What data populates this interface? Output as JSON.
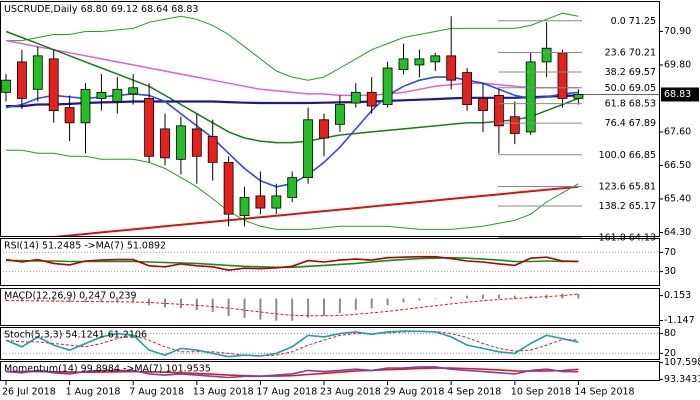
{
  "chart_data": [
    {
      "type": "candlestick",
      "title": "USCRUDE,Daily",
      "header_values": [
        "68.80",
        "69.12",
        "68.64",
        "68.83"
      ],
      "categories": [
        "26 Jul 2018",
        null,
        null,
        null,
        "1 Aug 2018",
        null,
        null,
        null,
        "7 Aug 2018",
        null,
        null,
        null,
        "13 Aug 2018",
        null,
        null,
        null,
        "17 Aug 2018",
        null,
        null,
        null,
        "23 Aug 2018",
        null,
        null,
        null,
        "29 Aug 2018",
        null,
        null,
        null,
        "4 Sep 2018",
        null,
        null,
        null,
        "10 Sep 2018",
        null,
        null,
        null,
        "14 Sep 2018"
      ],
      "open": [
        68.9,
        69.9,
        69.0,
        70.0,
        68.4,
        67.9,
        68.7,
        68.6,
        68.85,
        68.7,
        67.7,
        66.7,
        67.7,
        67.45,
        66.6,
        64.85,
        65.5,
        65.1,
        65.45,
        66.1,
        68.0,
        67.85,
        68.55,
        68.9,
        68.5,
        69.65,
        69.8,
        69.9,
        70.1,
        69.55,
        68.7,
        68.8,
        68.1,
        67.6,
        69.9,
        70.2,
        68.7
      ],
      "high": [
        69.5,
        70.3,
        70.4,
        70.3,
        68.8,
        69.2,
        69.5,
        69.4,
        69.5,
        69.2,
        68.2,
        68.1,
        68.2,
        68.0,
        66.8,
        65.8,
        66.3,
        65.9,
        66.3,
        68.4,
        68.2,
        68.8,
        69.2,
        69.4,
        69.9,
        70.5,
        70.3,
        70.2,
        71.4,
        69.7,
        69.2,
        69.0,
        68.6,
        70.2,
        71.2,
        70.3,
        69.0
      ],
      "low": [
        68.6,
        68.35,
        68.6,
        67.9,
        67.3,
        66.9,
        68.3,
        68.2,
        68.5,
        66.6,
        66.5,
        66.2,
        65.9,
        66.0,
        64.5,
        64.5,
        64.9,
        64.9,
        65.3,
        65.9,
        66.8,
        67.6,
        68.4,
        68.2,
        68.4,
        69.5,
        69.4,
        69.6,
        69.0,
        68.3,
        67.6,
        66.9,
        67.2,
        67.5,
        69.4,
        68.4,
        68.5
      ],
      "close": [
        69.3,
        68.7,
        70.1,
        68.3,
        67.9,
        69.0,
        68.9,
        69.0,
        69.05,
        66.8,
        66.75,
        67.8,
        66.8,
        66.6,
        64.9,
        65.45,
        65.1,
        65.5,
        66.1,
        68.0,
        67.4,
        68.5,
        68.9,
        68.45,
        69.7,
        70.0,
        70.0,
        70.1,
        69.3,
        68.5,
        68.3,
        67.8,
        67.55,
        69.9,
        70.35,
        68.7,
        68.83
      ],
      "up_color": "#22c022",
      "down_color": "#e8201b",
      "overlays": [
        {
          "color": "#d21414",
          "width": 2,
          "values": [
            64.0,
            64.05,
            64.1,
            64.15,
            64.2,
            64.25,
            64.3,
            64.35,
            64.4,
            64.45,
            64.5,
            64.55,
            64.6,
            64.65,
            64.7,
            64.75,
            64.8,
            64.85,
            64.9,
            64.95,
            65.0,
            65.05,
            65.1,
            65.15,
            65.2,
            65.25,
            65.3,
            65.35,
            65.4,
            65.45,
            65.5,
            65.55,
            65.6,
            65.65,
            65.7,
            65.75,
            65.8
          ]
        },
        {
          "color": "#2a9a2a",
          "width": 1,
          "values": [
            70.6,
            70.6,
            70.7,
            70.8,
            70.8,
            70.9,
            70.9,
            70.95,
            71.0,
            71.2,
            71.3,
            71.4,
            71.3,
            71.1,
            70.8,
            70.4,
            70.0,
            69.6,
            69.4,
            69.3,
            69.4,
            69.7,
            70.0,
            70.3,
            70.5,
            70.7,
            70.8,
            70.9,
            71.0,
            71.0,
            71.0,
            71.0,
            71.0,
            71.1,
            71.3,
            71.5,
            71.4
          ]
        },
        {
          "color": "#2a9a2a",
          "width": 1,
          "values": [
            67.0,
            67.0,
            66.9,
            66.9,
            66.8,
            66.8,
            66.7,
            66.7,
            66.7,
            66.6,
            66.4,
            66.1,
            65.8,
            65.4,
            65.0,
            64.7,
            64.5,
            64.4,
            64.4,
            64.4,
            64.45,
            64.5,
            64.5,
            64.5,
            64.5,
            64.45,
            64.4,
            64.4,
            64.4,
            64.45,
            64.5,
            64.6,
            64.7,
            64.9,
            65.3,
            65.6,
            65.9
          ]
        },
        {
          "color": "#e060d0",
          "width": 1.5,
          "values": [
            70.6,
            70.5,
            70.4,
            70.3,
            70.2,
            70.1,
            70.0,
            69.9,
            69.8,
            69.7,
            69.6,
            69.5,
            69.4,
            69.3,
            69.2,
            69.1,
            69.0,
            68.95,
            68.9,
            68.85,
            68.85,
            68.8,
            68.8,
            68.8,
            68.85,
            68.9,
            69.0,
            69.1,
            69.15,
            69.2,
            69.2,
            69.15,
            69.1,
            69.05,
            69.05,
            69.05,
            69.05
          ]
        },
        {
          "color": "#1a7a1a",
          "width": 1.5,
          "values": [
            70.9,
            70.7,
            70.5,
            70.3,
            70.1,
            69.9,
            69.7,
            69.5,
            69.3,
            69.1,
            68.8,
            68.5,
            68.2,
            67.9,
            67.6,
            67.4,
            67.3,
            67.25,
            67.25,
            67.3,
            67.4,
            67.5,
            67.55,
            67.6,
            67.65,
            67.7,
            67.75,
            67.8,
            67.85,
            67.9,
            67.9,
            67.95,
            68.0,
            68.1,
            68.3,
            68.5,
            68.7
          ]
        },
        {
          "color": "#1a1a8c",
          "width": 2.2,
          "values": [
            68.45,
            68.45,
            68.5,
            68.5,
            68.52,
            68.55,
            68.57,
            68.58,
            68.6,
            68.6,
            68.6,
            68.6,
            68.6,
            68.6,
            68.58,
            68.56,
            68.55,
            68.55,
            68.55,
            68.55,
            68.56,
            68.57,
            68.58,
            68.6,
            68.62,
            68.64,
            68.66,
            68.68,
            68.7,
            68.72,
            68.72,
            68.72,
            68.72,
            68.74,
            68.76,
            68.78,
            68.8
          ]
        },
        {
          "color": "#2e4ed8",
          "width": 1.6,
          "values": [
            68.4,
            68.5,
            68.7,
            68.8,
            68.75,
            68.7,
            68.75,
            68.8,
            68.85,
            68.8,
            68.6,
            68.2,
            67.8,
            67.4,
            66.9,
            66.4,
            66.0,
            65.8,
            65.9,
            66.2,
            66.6,
            67.1,
            67.7,
            68.3,
            68.8,
            69.1,
            69.3,
            69.4,
            69.4,
            69.3,
            69.2,
            69.0,
            68.8,
            68.7,
            68.75,
            68.85,
            68.9
          ]
        }
      ],
      "fibonacci": [
        {
          "level": "0.0",
          "price": 71.25
        },
        {
          "level": "23.6",
          "price": 70.21
        },
        {
          "level": "38.2",
          "price": 69.57
        },
        {
          "level": "50.0",
          "price": 69.05
        },
        {
          "level": "61.8",
          "price": 68.53
        },
        {
          "level": "76.4",
          "price": 67.89
        },
        {
          "level": "100.0",
          "price": 66.85
        },
        {
          "level": "123.6",
          "price": 65.81
        },
        {
          "level": "138.2",
          "price": 65.17
        },
        {
          "level": "161.8",
          "price": 64.13
        }
      ],
      "last_price": 68.83,
      "ylim": [
        64.15,
        71.9
      ],
      "yticks": [
        {
          "value": 70.9,
          "label": "70.90"
        },
        {
          "value": 69.8,
          "label": "69.80"
        },
        {
          "value": 67.6,
          "label": "67.60"
        },
        {
          "value": 66.5,
          "label": "66.50"
        },
        {
          "value": 65.4,
          "label": "65.40"
        },
        {
          "value": 64.3,
          "label": "64.30"
        }
      ]
    },
    {
      "type": "indicator",
      "title": "RSI(14) 51.2485 ->MA(7) 51.0892",
      "ylim": [
        0,
        100
      ],
      "yticks": [
        70,
        30
      ],
      "grid": true,
      "series": [
        {
          "style": "line",
          "color": "#1a8a1a",
          "values": [
            53,
            53,
            52,
            52,
            51,
            51,
            51,
            51,
            51,
            50,
            49,
            48,
            47,
            45,
            43,
            41,
            40,
            39,
            39,
            41,
            43,
            45,
            47,
            50,
            53,
            55,
            57,
            58,
            59,
            58,
            56,
            54,
            51,
            51,
            52,
            51,
            51.1
          ]
        },
        {
          "style": "line",
          "color": "#b00000",
          "values": [
            55,
            50,
            55,
            47,
            44,
            52,
            54,
            55,
            55,
            42,
            40,
            46,
            42,
            40,
            33,
            37,
            36,
            38,
            41,
            53,
            50,
            54,
            56,
            54,
            59,
            60,
            61,
            61,
            57,
            52,
            50,
            46,
            43,
            58,
            60,
            52,
            51.2
          ]
        }
      ]
    },
    {
      "type": "indicator",
      "title": "MACD(12,26,9) 0.247 0.239",
      "ylim": [
        -1.43,
        0.55
      ],
      "yticks": [
        0.153,
        -1.147
      ],
      "grid": false,
      "series": [
        {
          "style": "bar",
          "color": "#8a8a8a",
          "values": [
            -0.1,
            -0.15,
            -0.1,
            -0.15,
            -0.2,
            -0.2,
            -0.2,
            -0.2,
            -0.2,
            -0.35,
            -0.45,
            -0.5,
            -0.6,
            -0.7,
            -0.9,
            -1.0,
            -1.1,
            -1.15,
            -1.15,
            -1.0,
            -0.9,
            -0.75,
            -0.6,
            -0.5,
            -0.35,
            -0.2,
            -0.1,
            0.0,
            0.1,
            0.15,
            0.2,
            0.2,
            0.15,
            0.15,
            0.2,
            0.25,
            0.247
          ]
        },
        {
          "style": "dashed",
          "color": "#d42020",
          "values": [
            -0.1,
            -0.11,
            -0.12,
            -0.13,
            -0.14,
            -0.15,
            -0.16,
            -0.17,
            -0.18,
            -0.2,
            -0.25,
            -0.3,
            -0.35,
            -0.42,
            -0.5,
            -0.6,
            -0.7,
            -0.8,
            -0.87,
            -0.9,
            -0.9,
            -0.88,
            -0.82,
            -0.75,
            -0.67,
            -0.57,
            -0.47,
            -0.37,
            -0.28,
            -0.19,
            -0.11,
            -0.05,
            0.0,
            0.05,
            0.1,
            0.15,
            0.239
          ]
        }
      ]
    },
    {
      "type": "indicator",
      "title": "Stoch(5,3,3) 54.1241 61.2106",
      "ylim": [
        0,
        100
      ],
      "yticks": [
        80,
        20
      ],
      "grid": true,
      "series": [
        {
          "style": "dashed",
          "color": "#d42020",
          "values": [
            60,
            55,
            55,
            50,
            45,
            40,
            50,
            65,
            75,
            60,
            40,
            25,
            25,
            25,
            20,
            15,
            12,
            15,
            25,
            45,
            60,
            75,
            80,
            80,
            82,
            85,
            86,
            86,
            80,
            68,
            50,
            35,
            27,
            30,
            45,
            62,
            61
          ]
        },
        {
          "style": "line",
          "color": "#20a0a0",
          "values": [
            60,
            40,
            70,
            45,
            30,
            50,
            70,
            80,
            75,
            30,
            15,
            35,
            30,
            20,
            10,
            15,
            12,
            20,
            40,
            75,
            70,
            80,
            85,
            78,
            85,
            88,
            87,
            85,
            70,
            45,
            35,
            25,
            20,
            50,
            75,
            65,
            54
          ]
        }
      ]
    },
    {
      "type": "indicator",
      "title": "Momentum(14) 99.8984 ->MA(7) 101.9535",
      "ylim": [
        92,
        109
      ],
      "yticks": [
        107.5986,
        93.3431
      ],
      "grid": false,
      "series": [
        {
          "style": "line",
          "color": "#d42020",
          "values": [
            100,
            100,
            100,
            99.8,
            99.6,
            99.5,
            99.6,
            99.8,
            100,
            99.8,
            99.5,
            99,
            98.5,
            97.8,
            97,
            96.5,
            96.2,
            96.2,
            96.5,
            97.5,
            98.5,
            99.5,
            100.5,
            101,
            101.6,
            102,
            102.6,
            103,
            103,
            102.6,
            102,
            101.4,
            100.6,
            100.4,
            100.5,
            100.8,
            101.95
          ]
        },
        {
          "style": "line",
          "color": "#8040a0",
          "values": [
            100,
            99,
            101,
            99,
            98,
            100,
            101,
            101,
            101,
            98,
            97,
            98,
            97,
            96,
            95,
            96,
            96,
            97,
            98,
            101,
            100,
            101,
            102,
            101,
            103,
            103,
            104,
            104,
            102,
            101,
            100,
            99,
            98,
            101,
            102,
            100,
            99.9
          ]
        }
      ]
    }
  ]
}
